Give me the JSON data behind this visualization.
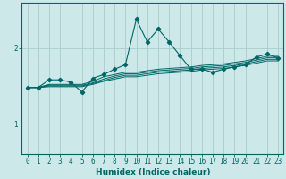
{
  "xlabel": "Humidex (Indice chaleur)",
  "ylabel": "",
  "background_color": "#cce8e8",
  "grid_color": "#aacccc",
  "line_color": "#006666",
  "x_ticks": [
    0,
    1,
    2,
    3,
    4,
    5,
    6,
    7,
    8,
    9,
    10,
    11,
    12,
    13,
    14,
    15,
    16,
    17,
    18,
    19,
    20,
    21,
    22,
    23
  ],
  "y_ticks": [
    1.0,
    2.0
  ],
  "ylim": [
    0.6,
    2.6
  ],
  "xlim": [
    -0.5,
    23.5
  ],
  "series": {
    "line_main": [
      1.48,
      1.48,
      1.58,
      1.58,
      1.55,
      1.42,
      1.6,
      1.65,
      1.72,
      1.78,
      2.38,
      2.08,
      2.25,
      2.08,
      1.9,
      1.72,
      1.72,
      1.68,
      1.72,
      1.75,
      1.78,
      1.88,
      1.92,
      1.87
    ],
    "line2": [
      1.48,
      1.48,
      1.52,
      1.52,
      1.52,
      1.52,
      1.56,
      1.62,
      1.65,
      1.68,
      1.68,
      1.7,
      1.72,
      1.73,
      1.74,
      1.75,
      1.77,
      1.78,
      1.79,
      1.81,
      1.83,
      1.86,
      1.89,
      1.89
    ],
    "line3": [
      1.48,
      1.48,
      1.51,
      1.51,
      1.51,
      1.51,
      1.54,
      1.59,
      1.63,
      1.66,
      1.66,
      1.68,
      1.7,
      1.71,
      1.72,
      1.73,
      1.75,
      1.76,
      1.77,
      1.79,
      1.81,
      1.84,
      1.87,
      1.87
    ],
    "line4": [
      1.48,
      1.48,
      1.5,
      1.5,
      1.5,
      1.5,
      1.53,
      1.57,
      1.61,
      1.64,
      1.64,
      1.66,
      1.68,
      1.69,
      1.7,
      1.71,
      1.73,
      1.74,
      1.75,
      1.77,
      1.79,
      1.82,
      1.85,
      1.85
    ],
    "line5": [
      1.48,
      1.48,
      1.49,
      1.49,
      1.49,
      1.49,
      1.52,
      1.56,
      1.59,
      1.62,
      1.62,
      1.64,
      1.66,
      1.67,
      1.68,
      1.69,
      1.71,
      1.72,
      1.73,
      1.75,
      1.77,
      1.8,
      1.83,
      1.83
    ]
  }
}
